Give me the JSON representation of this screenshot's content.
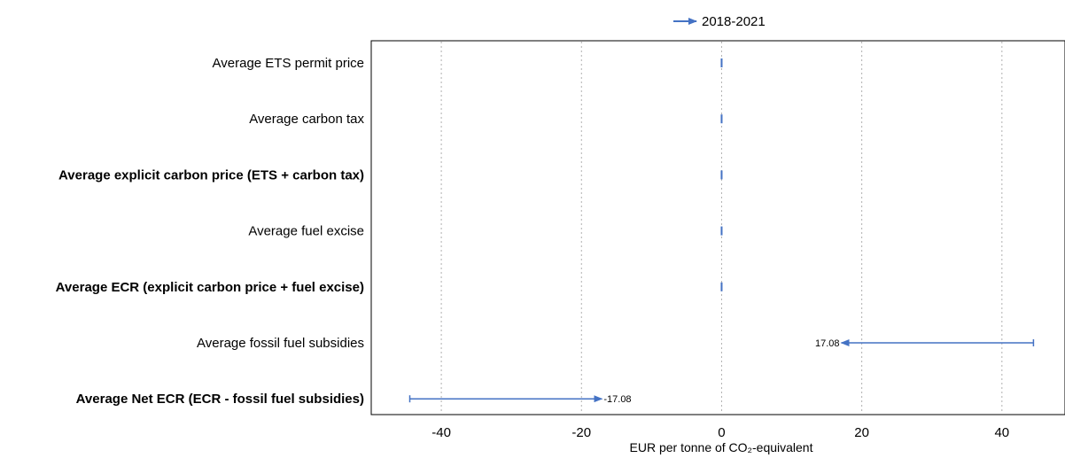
{
  "chart_data": {
    "type": "arrow",
    "legend": {
      "label": "2018-2021",
      "placement": "top-center",
      "color": "#4472C4"
    },
    "categories": [
      {
        "label": "Average ETS permit price",
        "bold": false
      },
      {
        "label": "Average carbon tax",
        "bold": false
      },
      {
        "label": "Average explicit carbon price (ETS + carbon tax)",
        "bold": true
      },
      {
        "label": "Average fuel excise",
        "bold": false
      },
      {
        "label": "Average ECR (explicit carbon price + fuel excise)",
        "bold": true
      },
      {
        "label": "Average fossil fuel subsidies",
        "bold": false
      },
      {
        "label": "Average Net ECR (ECR - fossil fuel subsidies)",
        "bold": true
      }
    ],
    "series": [
      {
        "name": "2018-2021",
        "from": [
          0,
          0,
          0,
          0,
          0,
          44.5,
          -44.5
        ],
        "to": [
          0,
          0,
          0,
          0,
          0,
          17.08,
          -17.08
        ],
        "labels": [
          "",
          "",
          "",
          "",
          "",
          "17.08",
          "-17.08"
        ]
      }
    ],
    "xticks": [
      -40,
      -20,
      0,
      20,
      40
    ],
    "xlim": [
      -50,
      49
    ],
    "xlabel": "EUR per tonne of CO₂-equivalent",
    "grid": "vertical-dotted"
  }
}
